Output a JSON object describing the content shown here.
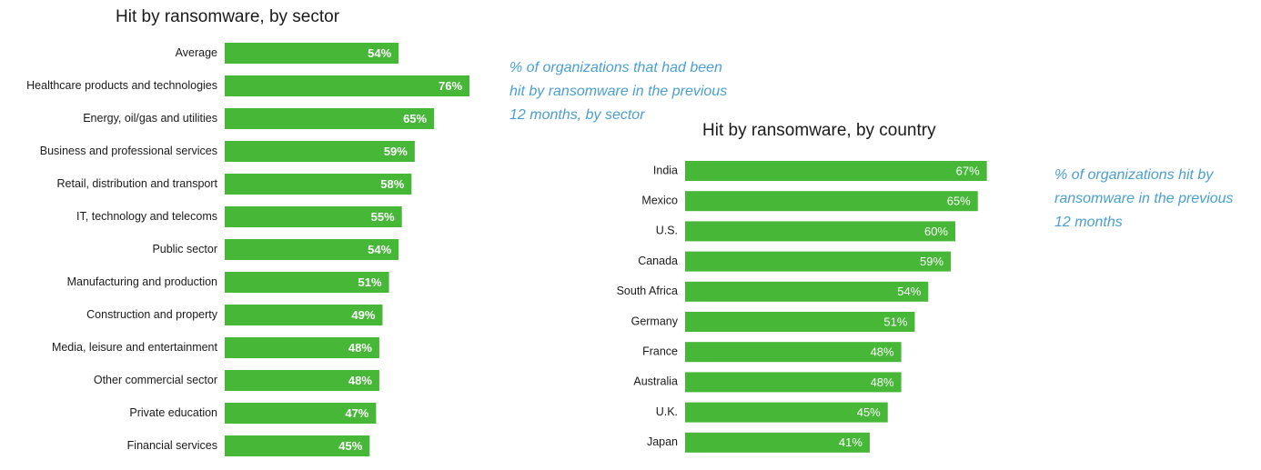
{
  "colors": {
    "bar": "#46b737",
    "note": "#4a9fd0",
    "value_text": "#ffffff"
  },
  "chart_data": [
    {
      "type": "bar",
      "orientation": "horizontal",
      "title": "Hit by ransomware, by sector",
      "note_lines": [
        "% of organizations that had been",
        "hit by ransomware in the previous",
        "12 months, by sector"
      ],
      "categories": [
        "Average",
        "Healthcare products and technologies",
        "Energy, oil/gas and utilities",
        "Business and professional services",
        "Retail, distribution and transport",
        "IT, technology and telecoms",
        "Public sector",
        "Manufacturing and production",
        "Construction and property",
        "Media, leisure and entertainment",
        "Other commercial sector",
        "Private education",
        "Financial services"
      ],
      "values": [
        54,
        76,
        65,
        59,
        58,
        55,
        54,
        51,
        49,
        48,
        48,
        47,
        45
      ],
      "value_labels": [
        "54%",
        "76%",
        "65%",
        "59%",
        "58%",
        "55%",
        "54%",
        "51%",
        "49%",
        "48%",
        "48%",
        "47%",
        "45%"
      ],
      "unit": "%"
    },
    {
      "type": "bar",
      "orientation": "horizontal",
      "title": "Hit by ransomware, by country",
      "note_lines": [
        "% of organizations hit by",
        "ransomware in the previous",
        "12 months"
      ],
      "categories": [
        "India",
        "Mexico",
        "U.S.",
        "Canada",
        "South Africa",
        "Germany",
        "France",
        "Australia",
        "U.K.",
        "Japan"
      ],
      "values": [
        67,
        65,
        60,
        59,
        54,
        51,
        48,
        48,
        45,
        41
      ],
      "value_labels": [
        "67%",
        "65%",
        "60%",
        "59%",
        "54%",
        "51%",
        "48%",
        "48%",
        "45%",
        "41%"
      ],
      "unit": "%"
    }
  ]
}
